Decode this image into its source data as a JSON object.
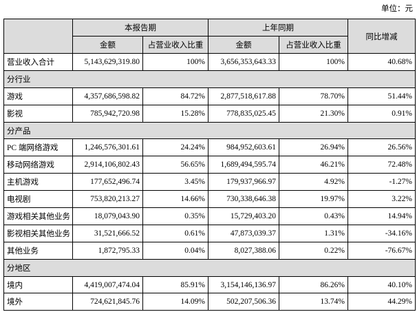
{
  "unit": "单位：元",
  "header": {
    "row1": [
      "本报告期",
      "上年同期",
      "同比增减"
    ],
    "row2": [
      "金额",
      "占营业收入比重",
      "金额",
      "占营业收入比重"
    ]
  },
  "rows": [
    [
      "营业收入合计",
      "5,143,629,319.80",
      "100%",
      "3,656,353,643.33",
      "100%",
      "40.68%"
    ],
    [
      "分行业"
    ],
    [
      "游戏",
      "4,357,686,598.82",
      "84.72%",
      "2,877,518,617.88",
      "78.70%",
      "51.44%"
    ],
    [
      "影视",
      "785,942,720.98",
      "15.28%",
      "778,835,025.45",
      "21.30%",
      "0.91%"
    ],
    [
      "分产品"
    ],
    [
      "PC 端网络游戏",
      "1,246,576,301.61",
      "24.24%",
      "984,952,603.61",
      "26.94%",
      "26.56%"
    ],
    [
      "移动网络游戏",
      "2,914,106,802.43",
      "56.65%",
      "1,689,494,595.74",
      "46.21%",
      "72.48%"
    ],
    [
      "主机游戏",
      "177,652,496.74",
      "3.45%",
      "179,937,966.97",
      "4.92%",
      "-1.27%"
    ],
    [
      "电视剧",
      "753,820,213.27",
      "14.66%",
      "730,338,646.38",
      "19.97%",
      "3.22%"
    ],
    [
      "游戏相关其他业务",
      "18,079,043.90",
      "0.35%",
      "15,729,403.20",
      "0.43%",
      "14.94%"
    ],
    [
      "影视相关其他业务",
      "31,521,666.52",
      "0.61%",
      "47,873,039.37",
      "1.31%",
      "-34.16%"
    ],
    [
      "其他业务",
      "1,872,795.33",
      "0.04%",
      "8,027,388.06",
      "0.22%",
      "-76.67%"
    ],
    [
      "分地区"
    ],
    [
      "境内",
      "4,419,007,474.04",
      "85.91%",
      "3,154,146,136.97",
      "86.26%",
      "40.10%"
    ],
    [
      "境外",
      "724,621,845.76",
      "14.09%",
      "502,207,506.36",
      "13.74%",
      "44.29%"
    ]
  ]
}
